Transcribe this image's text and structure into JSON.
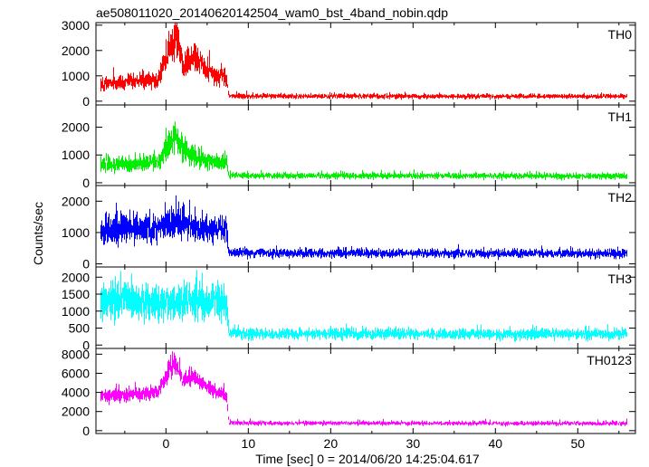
{
  "chart_data": {
    "type": "line",
    "title": "ae508011020_20140620142504_wam0_bst_4band_nobin.qdp",
    "xlabel": "Time [sec] 0 = 2014/06/20 14:25:04.617",
    "ylabel": "Counts/sec",
    "xlim": [
      -8.5,
      57
    ],
    "xticks": [
      0,
      10,
      20,
      30,
      40,
      50
    ],
    "grid": false,
    "panels": [
      {
        "name": "TH0",
        "color": "#ff0000",
        "ylim": [
          -150,
          3100
        ],
        "yticks": [
          0,
          1000,
          2000,
          3000
        ],
        "profile": [
          {
            "t": -8,
            "mean": 700,
            "noise": 220
          },
          {
            "t": -1,
            "mean": 850,
            "noise": 240
          },
          {
            "t": 0.3,
            "mean": 2100,
            "noise": 450
          },
          {
            "t": 1.2,
            "mean": 2600,
            "noise": 500
          },
          {
            "t": 2.0,
            "mean": 1400,
            "noise": 350
          },
          {
            "t": 3.5,
            "mean": 1800,
            "noise": 420
          },
          {
            "t": 5.0,
            "mean": 1150,
            "noise": 300
          },
          {
            "t": 7.3,
            "mean": 950,
            "noise": 250
          },
          {
            "t": 7.6,
            "mean": 200,
            "noise": 70
          },
          {
            "t": 56,
            "mean": 190,
            "noise": 70
          }
        ]
      },
      {
        "name": "TH1",
        "color": "#00ee00",
        "ylim": [
          -100,
          2800
        ],
        "yticks": [
          0,
          1000,
          2000
        ],
        "profile": [
          {
            "t": -8,
            "mean": 620,
            "noise": 200
          },
          {
            "t": -1,
            "mean": 760,
            "noise": 220
          },
          {
            "t": 0.3,
            "mean": 1400,
            "noise": 380
          },
          {
            "t": 1.0,
            "mean": 1750,
            "noise": 420
          },
          {
            "t": 2.5,
            "mean": 1050,
            "noise": 300
          },
          {
            "t": 5.0,
            "mean": 780,
            "noise": 230
          },
          {
            "t": 7.3,
            "mean": 700,
            "noise": 220
          },
          {
            "t": 7.6,
            "mean": 260,
            "noise": 80
          },
          {
            "t": 56,
            "mean": 240,
            "noise": 80
          }
        ]
      },
      {
        "name": "TH2",
        "color": "#0000ff",
        "ylim": [
          -100,
          2500
        ],
        "yticks": [
          0,
          1000,
          2000
        ],
        "profile": [
          {
            "t": -8,
            "mean": 1100,
            "noise": 330
          },
          {
            "t": -1,
            "mean": 1150,
            "noise": 340
          },
          {
            "t": 1.0,
            "mean": 1400,
            "noise": 380
          },
          {
            "t": 3.0,
            "mean": 1200,
            "noise": 330
          },
          {
            "t": 7.3,
            "mean": 1050,
            "noise": 300
          },
          {
            "t": 7.6,
            "mean": 350,
            "noise": 100
          },
          {
            "t": 56,
            "mean": 330,
            "noise": 100
          }
        ]
      },
      {
        "name": "TH3",
        "color": "#00ffff",
        "ylim": [
          -100,
          2300
        ],
        "yticks": [
          0,
          500,
          1000,
          1500,
          2000
        ],
        "profile": [
          {
            "t": -8,
            "mean": 1250,
            "noise": 380
          },
          {
            "t": 7.3,
            "mean": 1250,
            "noise": 380
          },
          {
            "t": 7.6,
            "mean": 330,
            "noise": 110
          },
          {
            "t": 56,
            "mean": 320,
            "noise": 110
          }
        ]
      },
      {
        "name": "TH0123",
        "color": "#ff00ff",
        "ylim": [
          -300,
          8600
        ],
        "yticks": [
          0,
          2000,
          4000,
          6000,
          8000
        ],
        "profile": [
          {
            "t": -8,
            "mean": 3600,
            "noise": 500
          },
          {
            "t": -1,
            "mean": 4000,
            "noise": 550
          },
          {
            "t": 0.3,
            "mean": 6300,
            "noise": 700
          },
          {
            "t": 1.0,
            "mean": 7200,
            "noise": 750
          },
          {
            "t": 2.0,
            "mean": 5200,
            "noise": 600
          },
          {
            "t": 3.5,
            "mean": 5600,
            "noise": 620
          },
          {
            "t": 5.0,
            "mean": 4500,
            "noise": 550
          },
          {
            "t": 7.3,
            "mean": 3700,
            "noise": 500
          },
          {
            "t": 7.6,
            "mean": 800,
            "noise": 160
          },
          {
            "t": 56,
            "mean": 750,
            "noise": 160
          }
        ]
      }
    ]
  },
  "colors": {
    "TH0": "#ff0000",
    "TH1": "#00ee00",
    "TH2": "#0000ff",
    "TH3": "#00ffff",
    "TH0123": "#ff00ff"
  }
}
